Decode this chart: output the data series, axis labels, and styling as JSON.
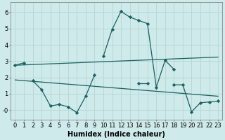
{
  "xlabel": "Humidex (Indice chaleur)",
  "background_color": "#ceeaea",
  "grid_color": "#b8d8d8",
  "line_color": "#1a6060",
  "x": [
    0,
    1,
    2,
    3,
    4,
    5,
    6,
    7,
    8,
    9,
    10,
    11,
    12,
    13,
    14,
    15,
    16,
    17,
    18,
    19,
    20,
    21,
    22,
    23
  ],
  "line1": [
    2.75,
    2.9,
    null,
    null,
    null,
    null,
    null,
    null,
    null,
    null,
    3.3,
    4.95,
    6.05,
    5.7,
    5.5,
    5.3,
    1.4,
    3.05,
    2.5,
    null,
    null,
    null,
    null,
    null
  ],
  "line2": [
    null,
    null,
    1.8,
    1.25,
    0.25,
    0.35,
    0.2,
    -0.15,
    0.85,
    2.15,
    null,
    null,
    null,
    null,
    null,
    null,
    null,
    null,
    null,
    null,
    null,
    null,
    null,
    null
  ],
  "line3": [
    null,
    null,
    null,
    null,
    null,
    null,
    null,
    null,
    null,
    null,
    null,
    null,
    null,
    null,
    1.65,
    1.65,
    null,
    null,
    1.55,
    1.55,
    -0.1,
    0.45,
    0.5,
    0.55
  ],
  "trend1_x": [
    0,
    23
  ],
  "trend1_y": [
    2.75,
    3.25
  ],
  "trend2_x": [
    0,
    23
  ],
  "trend2_y": [
    1.85,
    0.85
  ],
  "ylim": [
    -0.6,
    6.6
  ],
  "xlim": [
    -0.5,
    23.5
  ],
  "yticks": [
    0,
    1,
    2,
    3,
    4,
    5,
    6
  ],
  "ytick_labels": [
    "-0",
    "1",
    "2",
    "3",
    "4",
    "5",
    "6"
  ],
  "xticks": [
    0,
    1,
    2,
    3,
    4,
    5,
    6,
    7,
    8,
    9,
    10,
    11,
    12,
    13,
    14,
    15,
    16,
    17,
    18,
    19,
    20,
    21,
    22,
    23
  ],
  "label_fontsize": 7,
  "tick_fontsize": 6
}
